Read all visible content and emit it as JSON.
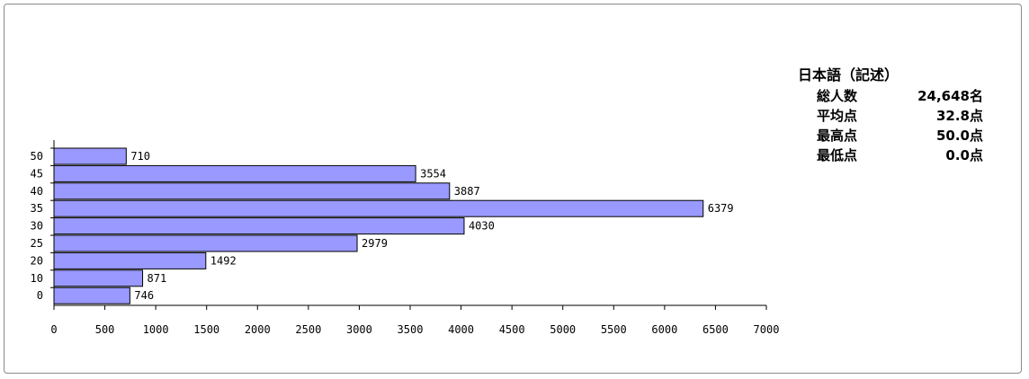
{
  "chart_data": {
    "type": "bar",
    "orientation": "horizontal",
    "categories": [
      "50",
      "45",
      "40",
      "35",
      "30",
      "25",
      "20",
      "10",
      "0"
    ],
    "values": [
      710,
      3554,
      3887,
      6379,
      4030,
      2979,
      1492,
      871,
      746
    ],
    "data_labels": [
      "710",
      "3554",
      "3887",
      "6379",
      "4030",
      "2979",
      "1492",
      "871",
      "746"
    ],
    "xlim": [
      0,
      7000
    ],
    "x_ticks": [
      "0",
      "500",
      "1000",
      "1500",
      "2000",
      "2500",
      "3000",
      "3500",
      "4000",
      "4500",
      "5000",
      "5500",
      "6000",
      "6500",
      "7000"
    ],
    "grid": false,
    "colors": {
      "bar_fill": "#9999ff",
      "bar_stroke": "#000000"
    }
  },
  "stats": {
    "title": "日本語（記述）",
    "rows": [
      {
        "label": "総人数",
        "value": "24,648名"
      },
      {
        "label": "平均点",
        "value": "32.8点"
      },
      {
        "label": "最高点",
        "value": "50.0点"
      },
      {
        "label": "最低点",
        "value": "0.0点"
      }
    ]
  }
}
